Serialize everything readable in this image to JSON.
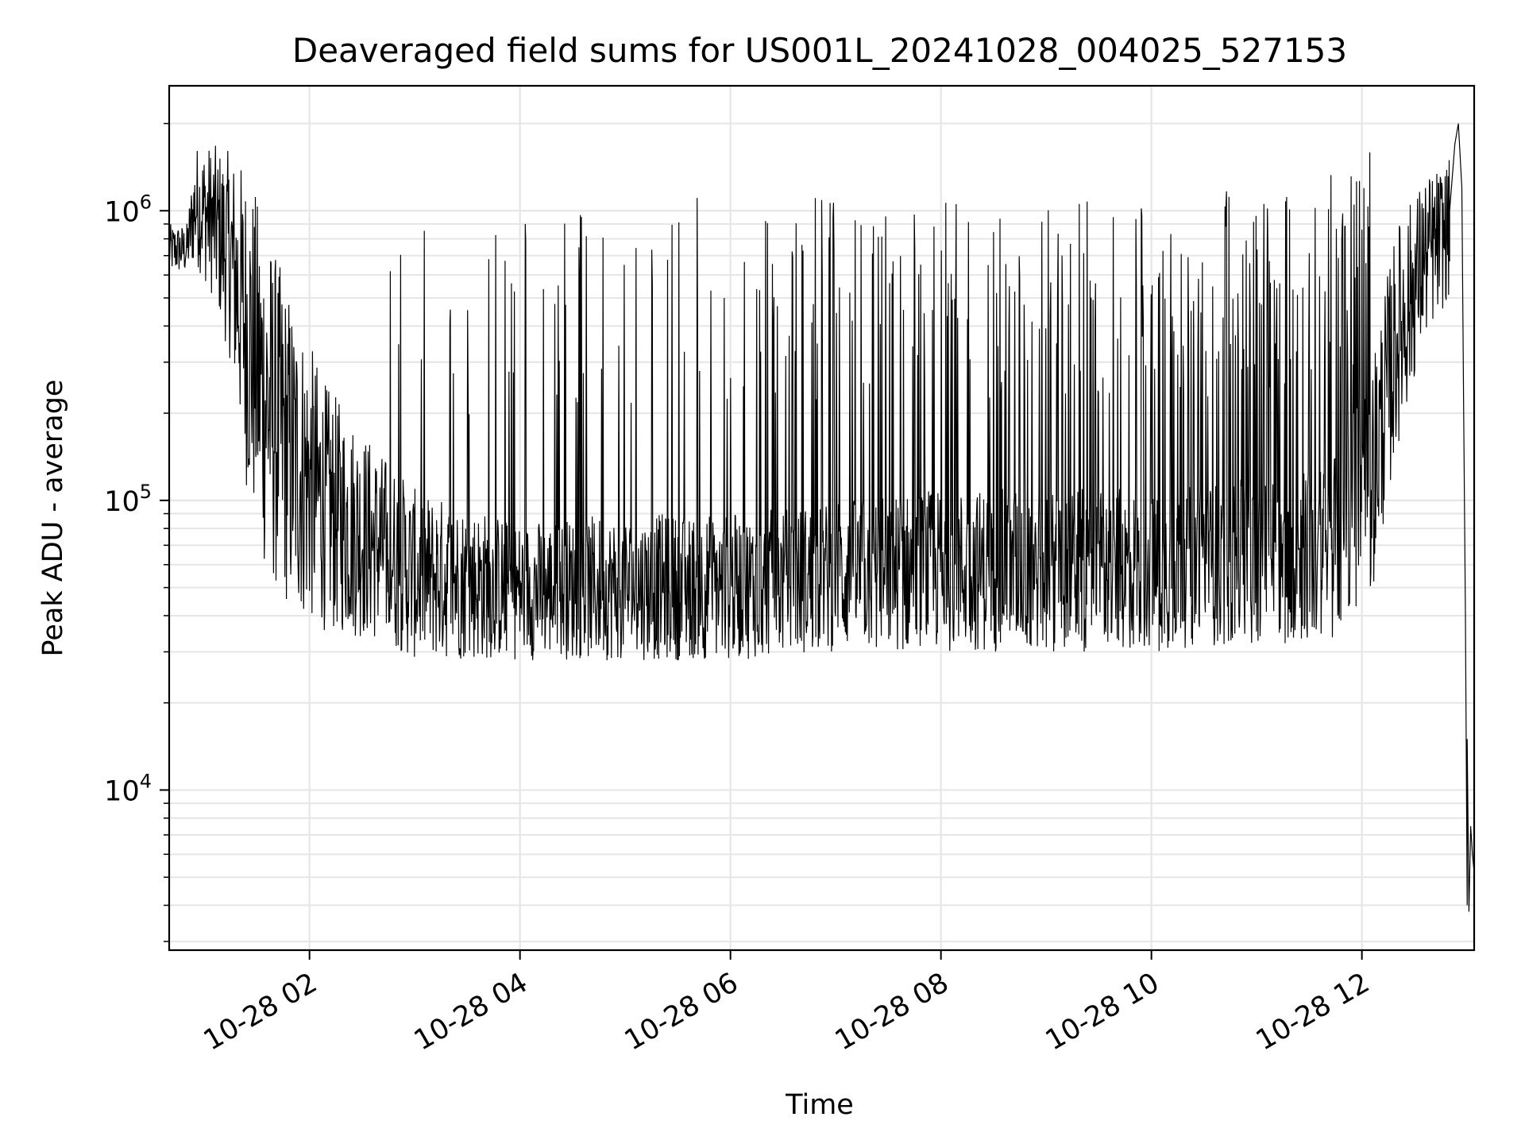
{
  "chart_data": {
    "type": "line",
    "title": "Deaveraged field sums for US001L_20241028_004025_527153",
    "xlabel": "Time",
    "ylabel": "Peak ADU - average",
    "x_axis": {
      "type": "time",
      "range": [
        "2024-10-28 00:40",
        "2024-10-28 13:04"
      ],
      "ticks": [
        {
          "value": "2024-10-28 02:00",
          "label": "10-28 02"
        },
        {
          "value": "2024-10-28 04:00",
          "label": "10-28 04"
        },
        {
          "value": "2024-10-28 06:00",
          "label": "10-28 06"
        },
        {
          "value": "2024-10-28 08:00",
          "label": "10-28 08"
        },
        {
          "value": "2024-10-28 10:00",
          "label": "10-28 10"
        },
        {
          "value": "2024-10-28 12:00",
          "label": "10-28 12"
        }
      ]
    },
    "y_axis": {
      "scale": "log",
      "range": [
        2800,
        2700000
      ],
      "ticks": [
        {
          "value": 10000,
          "base": "10",
          "exp": "4"
        },
        {
          "value": 100000,
          "base": "10",
          "exp": "5"
        },
        {
          "value": 1000000,
          "base": "10",
          "exp": "6"
        }
      ]
    },
    "grid": true,
    "series": [
      {
        "color": "#000000",
        "envelope": [
          {
            "t": "2024-10-28 00:40",
            "low": 600000,
            "high": 900000
          },
          {
            "t": "2024-10-28 00:50",
            "low": 600000,
            "high": 900000
          },
          {
            "t": "2024-10-28 00:55",
            "low": 650000,
            "high": 1700000
          },
          {
            "t": "2024-10-28 01:05",
            "low": 500000,
            "high": 1700000
          },
          {
            "t": "2024-10-28 01:15",
            "low": 300000,
            "high": 1600000
          },
          {
            "t": "2024-10-28 01:25",
            "low": 100000,
            "high": 1400000
          },
          {
            "t": "2024-10-28 01:35",
            "low": 55000,
            "high": 900000
          },
          {
            "t": "2024-10-28 01:50",
            "low": 40000,
            "high": 500000
          },
          {
            "t": "2024-10-28 02:10",
            "low": 35000,
            "high": 250000
          },
          {
            "t": "2024-10-28 02:40",
            "low": 32000,
            "high": 150000
          },
          {
            "t": "2024-10-28 03:00",
            "low": 28000,
            "high": 110000
          },
          {
            "t": "2024-10-28 04:00",
            "low": 28000,
            "high": 85000
          },
          {
            "t": "2024-10-28 05:00",
            "low": 28000,
            "high": 90000
          },
          {
            "t": "2024-10-28 06:00",
            "low": 28000,
            "high": 90000
          },
          {
            "t": "2024-10-28 07:00",
            "low": 30000,
            "high": 100000
          },
          {
            "t": "2024-10-28 08:00",
            "low": 30000,
            "high": 110000
          },
          {
            "t": "2024-10-28 09:00",
            "low": 30000,
            "high": 110000
          },
          {
            "t": "2024-10-28 10:00",
            "low": 30000,
            "high": 110000
          },
          {
            "t": "2024-10-28 11:00",
            "low": 32000,
            "high": 120000
          },
          {
            "t": "2024-10-28 11:40",
            "low": 32000,
            "high": 130000
          },
          {
            "t": "2024-10-28 12:05",
            "low": 45000,
            "high": 300000
          },
          {
            "t": "2024-10-28 12:20",
            "low": 150000,
            "high": 900000
          },
          {
            "t": "2024-10-28 12:35",
            "low": 350000,
            "high": 1300000
          },
          {
            "t": "2024-10-28 12:50",
            "low": 500000,
            "high": 1500000
          }
        ],
        "spike_top": [
          {
            "t": "2024-10-28 03:00",
            "high": 900000
          },
          {
            "t": "2024-10-28 04:00",
            "high": 1000000
          },
          {
            "t": "2024-10-28 05:00",
            "high": 1100000
          },
          {
            "t": "2024-10-28 06:00",
            "high": 1150000
          },
          {
            "t": "2024-10-28 08:00",
            "high": 1100000
          },
          {
            "t": "2024-10-28 10:00",
            "high": 1100000
          },
          {
            "t": "2024-10-28 11:40",
            "high": 1300000
          },
          {
            "t": "2024-10-28 12:00",
            "high": 1600000
          }
        ],
        "tail": [
          {
            "t": "2024-10-28 12:50",
            "y": 1000000
          },
          {
            "t": "2024-10-28 12:53",
            "y": 1700000
          },
          {
            "t": "2024-10-28 12:55",
            "y": 2000000
          },
          {
            "t": "2024-10-28 12:57",
            "y": 1200000
          },
          {
            "t": "2024-10-28 12:58",
            "y": 200000
          },
          {
            "t": "2024-10-28 12:59",
            "y": 40000
          },
          {
            "t": "2024-10-28 13:00",
            "y": 4000
          },
          {
            "t": "2024-10-28 13:00",
            "y": 15000
          },
          {
            "t": "2024-10-28 13:01",
            "y": 3800
          },
          {
            "t": "2024-10-28 13:02",
            "y": 7500
          },
          {
            "t": "2024-10-28 13:03",
            "y": 6000
          },
          {
            "t": "2024-10-28 13:04",
            "y": 5200
          }
        ]
      }
    ]
  }
}
